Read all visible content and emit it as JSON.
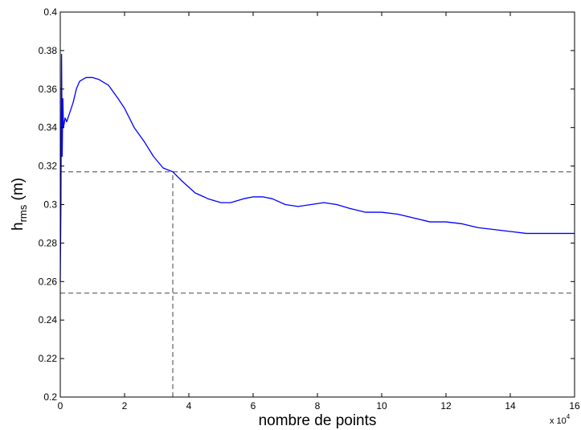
{
  "chart_data": {
    "type": "line",
    "title": "",
    "xlabel": "nombre de points",
    "ylabel_base": "h",
    "ylabel_sub": "rms",
    "ylabel_unit": " (m)",
    "x_multiplier_base": "x 10",
    "x_multiplier_exp": "4",
    "xlim": [
      0,
      16
    ],
    "ylim": [
      0.2,
      0.4
    ],
    "xticks": [
      0,
      2,
      4,
      6,
      8,
      10,
      12,
      14,
      16
    ],
    "xtick_labels": [
      "0",
      "2",
      "4",
      "6",
      "8",
      "10",
      "12",
      "14",
      "16"
    ],
    "yticks": [
      0.2,
      0.22,
      0.24,
      0.26,
      0.28,
      0.3,
      0.32,
      0.34,
      0.36,
      0.38,
      0.4
    ],
    "ytick_labels": [
      "0.2",
      "0.22",
      "0.24",
      "0.26",
      "0.28",
      "0.3",
      "0.32",
      "0.34",
      "0.36",
      "0.38",
      "0.4"
    ],
    "grid": false,
    "series": [
      {
        "color": "#0000ff",
        "x": [
          0,
          0.02,
          0.04,
          0.06,
          0.08,
          0.1,
          0.15,
          0.2,
          0.3,
          0.4,
          0.5,
          0.6,
          0.8,
          1.0,
          1.2,
          1.5,
          1.8,
          2.0,
          2.3,
          2.6,
          2.9,
          3.2,
          3.5,
          3.8,
          4.2,
          4.6,
          5.0,
          5.3,
          5.7,
          6.0,
          6.3,
          6.6,
          7.0,
          7.4,
          7.8,
          8.2,
          8.6,
          9.0,
          9.5,
          10.0,
          10.5,
          11.0,
          11.5,
          12.0,
          12.5,
          13.0,
          13.5,
          14.0,
          14.5,
          15.0,
          15.5,
          16.0
        ],
        "y": [
          0.26,
          0.3,
          0.378,
          0.325,
          0.355,
          0.34,
          0.345,
          0.343,
          0.348,
          0.353,
          0.36,
          0.364,
          0.366,
          0.366,
          0.365,
          0.362,
          0.355,
          0.35,
          0.34,
          0.333,
          0.325,
          0.319,
          0.317,
          0.312,
          0.306,
          0.303,
          0.301,
          0.301,
          0.303,
          0.304,
          0.304,
          0.303,
          0.3,
          0.299,
          0.3,
          0.301,
          0.3,
          0.298,
          0.296,
          0.296,
          0.295,
          0.293,
          0.291,
          0.291,
          0.29,
          0.288,
          0.287,
          0.286,
          0.285,
          0.285,
          0.285,
          0.285
        ]
      }
    ],
    "reference_lines": [
      {
        "orientation": "horizontal",
        "value": 0.317,
        "color": "#808080",
        "style": "dashed"
      },
      {
        "orientation": "horizontal",
        "value": 0.254,
        "color": "#808080",
        "style": "dashed"
      },
      {
        "orientation": "vertical",
        "value": 3.5,
        "from": 0.2,
        "to": 0.317,
        "color": "#808080",
        "style": "dashed"
      }
    ]
  }
}
